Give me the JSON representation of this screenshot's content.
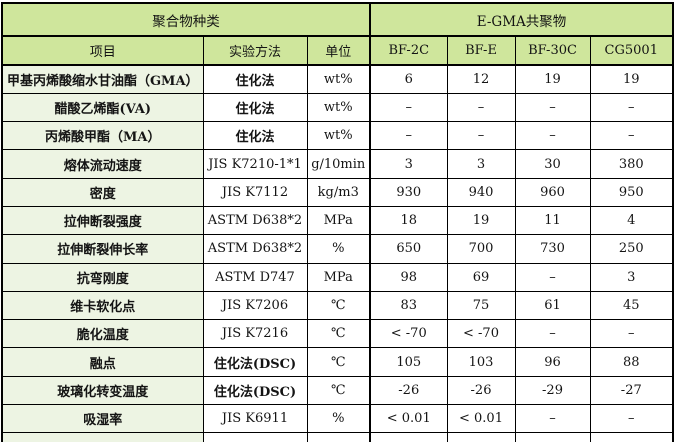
{
  "table": {
    "header_row1": [
      {
        "label": "聚合物种类",
        "colspan": 3
      },
      {
        "label": "E-GMA共聚物",
        "colspan": 4
      }
    ],
    "header_row2": [
      "项目",
      "实验方法",
      "单位",
      "BF-2C",
      "BF-E",
      "BF-30C",
      "CG5001"
    ],
    "rows": [
      {
        "item": "甲基丙烯酸缩水甘油酯（GMA）",
        "method": "住化法",
        "unit": "wt%",
        "values": [
          "6",
          "12",
          "19",
          "19"
        ]
      },
      {
        "item": "醋酸乙烯酯(VA)",
        "method": "住化法",
        "unit": "wt%",
        "values": [
          "–",
          "–",
          "–",
          "–"
        ]
      },
      {
        "item": "丙烯酸甲酯（MA）",
        "method": "住化法",
        "unit": "wt%",
        "values": [
          "–",
          "–",
          "–",
          "–"
        ]
      },
      {
        "item": "熔体流动速度",
        "method": "JIS K7210-1*1",
        "unit": "g/10min",
        "values": [
          "3",
          "3",
          "30",
          "380"
        ]
      },
      {
        "item": "密度",
        "method": "JIS K7112",
        "unit": "kg/m3",
        "values": [
          "930",
          "940",
          "960",
          "950"
        ]
      },
      {
        "item": "拉伸断裂强度",
        "method": "ASTM D638*2",
        "unit": "MPa",
        "values": [
          "18",
          "19",
          "11",
          "4"
        ]
      },
      {
        "item": "拉伸断裂伸长率",
        "method": "ASTM D638*2",
        "unit": "%",
        "values": [
          "650",
          "700",
          "730",
          "250"
        ]
      },
      {
        "item": "抗弯刚度",
        "method": "ASTM D747",
        "unit": "MPa",
        "values": [
          "98",
          "69",
          "–",
          "3"
        ]
      },
      {
        "item": "维卡软化点",
        "method": "JIS K7206",
        "unit": "℃",
        "values": [
          "83",
          "75",
          "61",
          "45"
        ]
      },
      {
        "item": "脆化温度",
        "method": "JIS K7216",
        "unit": "℃",
        "values": [
          "< -70",
          "< -70",
          "–",
          "–"
        ]
      },
      {
        "item": "融点",
        "method": "住化法(DSC)",
        "unit": "℃",
        "values": [
          "105",
          "103",
          "96",
          "88"
        ]
      },
      {
        "item": "玻璃化转变温度",
        "method": "住化法(DSC)",
        "unit": "℃",
        "values": [
          "-26",
          "-26",
          "-29",
          "-27"
        ]
      },
      {
        "item": "吸湿率",
        "method": "JIS K6911",
        "unit": "%",
        "values": [
          "< 0.01",
          "< 0.01",
          "–",
          "–"
        ]
      }
    ]
  },
  "colors": {
    "header_bg": "#cfe69c",
    "label_bg": "#edf4e3",
    "cell_bg": "#ffffff",
    "border": "#000000"
  }
}
